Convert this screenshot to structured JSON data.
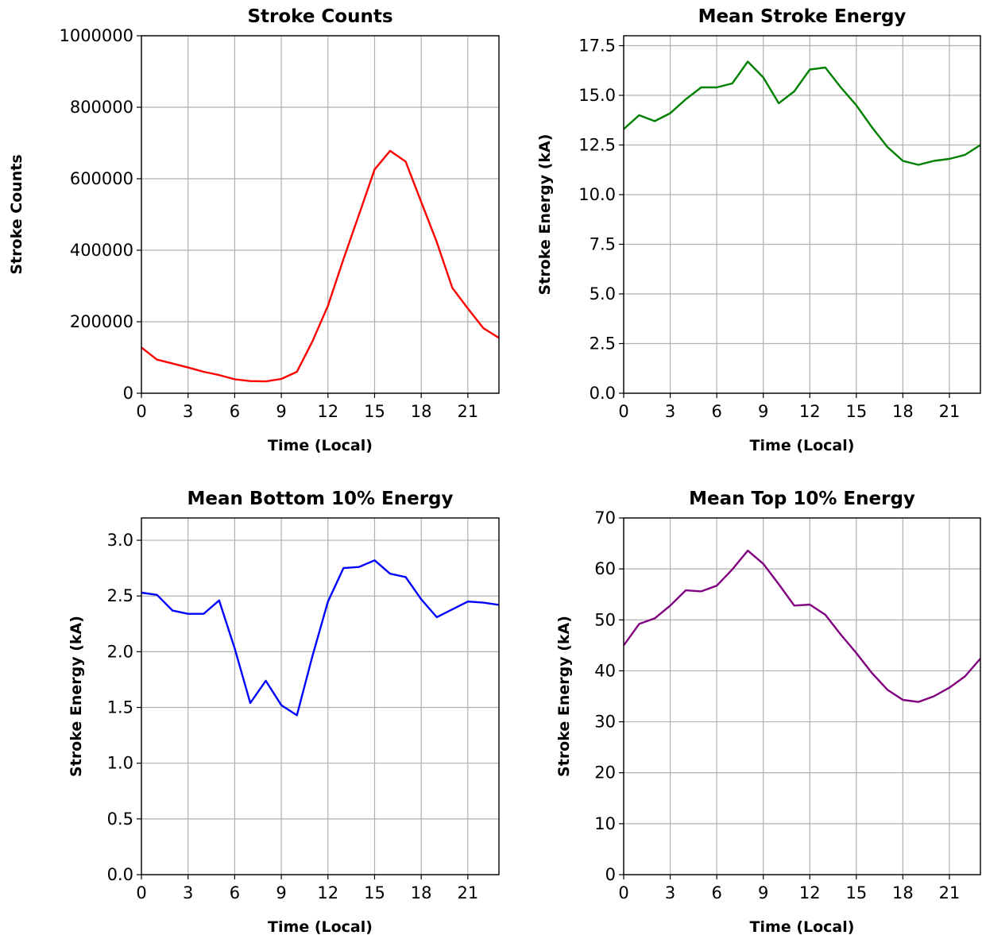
{
  "chart_data": [
    {
      "type": "line",
      "title": "Stroke Counts",
      "xlabel": "Time (Local)",
      "ylabel": "Stroke Counts",
      "xlim": [
        0,
        23
      ],
      "ylim": [
        0,
        1000000
      ],
      "xticks": [
        0,
        3,
        6,
        9,
        12,
        15,
        18,
        21
      ],
      "yticks": [
        0,
        200000,
        400000,
        600000,
        800000,
        1000000
      ],
      "ytick_labels": [
        "0",
        "200000",
        "400000",
        "600000",
        "800000",
        "1000000"
      ],
      "grid": true,
      "color": "#ff0000",
      "x": [
        0,
        1,
        2,
        3,
        4,
        5,
        6,
        7,
        8,
        9,
        10,
        11,
        12,
        13,
        14,
        15,
        16,
        17,
        18,
        19,
        20,
        21,
        22,
        23
      ],
      "values": [
        128000,
        94000,
        83000,
        72000,
        60000,
        51000,
        39000,
        34000,
        33000,
        40000,
        60000,
        145000,
        245000,
        375000,
        500000,
        626000,
        678000,
        648000,
        535000,
        423000,
        295000,
        237000,
        182000,
        155000
      ]
    },
    {
      "type": "line",
      "title": "Mean Stroke Energy",
      "xlabel": "Time (Local)",
      "ylabel": "Stroke Energy (kA)",
      "xlim": [
        0,
        23
      ],
      "ylim": [
        0,
        18
      ],
      "xticks": [
        0,
        3,
        6,
        9,
        12,
        15,
        18,
        21
      ],
      "yticks": [
        0,
        2.5,
        5,
        7.5,
        10,
        12.5,
        15,
        17.5
      ],
      "ytick_labels": [
        "0.0",
        "2.5",
        "5.0",
        "7.5",
        "10.0",
        "12.5",
        "15.0",
        "17.5"
      ],
      "grid": true,
      "color": "#008000",
      "x": [
        0,
        1,
        2,
        3,
        4,
        5,
        6,
        7,
        8,
        9,
        10,
        11,
        12,
        13,
        14,
        15,
        16,
        17,
        18,
        19,
        20,
        21,
        22,
        23
      ],
      "values": [
        13.3,
        14.0,
        13.7,
        14.1,
        14.8,
        15.4,
        15.4,
        15.6,
        16.7,
        15.9,
        14.6,
        15.2,
        16.3,
        16.4,
        15.4,
        14.5,
        13.4,
        12.4,
        11.7,
        11.5,
        11.7,
        11.8,
        12.0,
        12.5
      ]
    },
    {
      "type": "line",
      "title": "Mean Bottom 10% Energy",
      "xlabel": "Time (Local)",
      "ylabel": "Stroke Energy (kA)",
      "xlim": [
        0,
        23
      ],
      "ylim": [
        0,
        3.2
      ],
      "xticks": [
        0,
        3,
        6,
        9,
        12,
        15,
        18,
        21
      ],
      "yticks": [
        0,
        0.5,
        1.0,
        1.5,
        2.0,
        2.5,
        3.0
      ],
      "ytick_labels": [
        "0.0",
        "0.5",
        "1.0",
        "1.5",
        "2.0",
        "2.5",
        "3.0"
      ],
      "grid": true,
      "color": "#0000ff",
      "x": [
        0,
        1,
        2,
        3,
        4,
        5,
        6,
        7,
        8,
        9,
        10,
        11,
        12,
        13,
        14,
        15,
        16,
        17,
        18,
        19,
        20,
        21,
        22,
        23
      ],
      "values": [
        2.53,
        2.51,
        2.37,
        2.34,
        2.34,
        2.46,
        2.03,
        1.54,
        1.74,
        1.52,
        1.43,
        1.96,
        2.45,
        2.75,
        2.76,
        2.82,
        2.7,
        2.67,
        2.47,
        2.31,
        2.38,
        2.45,
        2.44,
        2.42
      ]
    },
    {
      "type": "line",
      "title": "Mean Top 10% Energy",
      "xlabel": "Time (Local)",
      "ylabel": "Stroke Energy (kA)",
      "xlim": [
        0,
        23
      ],
      "ylim": [
        0,
        70
      ],
      "xticks": [
        0,
        3,
        6,
        9,
        12,
        15,
        18,
        21
      ],
      "yticks": [
        0,
        10,
        20,
        30,
        40,
        50,
        60,
        70
      ],
      "ytick_labels": [
        "0",
        "10",
        "20",
        "30",
        "40",
        "50",
        "60",
        "70"
      ],
      "grid": true,
      "color": "#800080",
      "x": [
        0,
        1,
        2,
        3,
        4,
        5,
        6,
        7,
        8,
        9,
        10,
        11,
        12,
        13,
        14,
        15,
        16,
        17,
        18,
        19,
        20,
        21,
        22,
        23
      ],
      "values": [
        45.0,
        49.2,
        50.3,
        52.8,
        55.8,
        55.6,
        56.7,
        59.9,
        63.6,
        61.0,
        57.0,
        52.8,
        53.0,
        51.0,
        47.1,
        43.5,
        39.6,
        36.3,
        34.3,
        33.9,
        35.0,
        36.7,
        38.9,
        42.4
      ]
    }
  ]
}
